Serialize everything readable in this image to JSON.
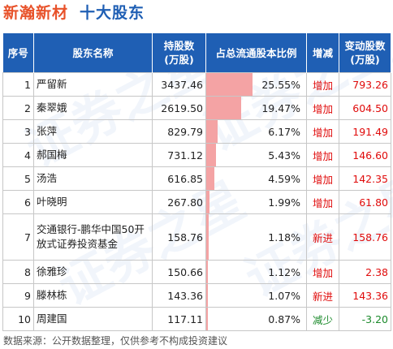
{
  "header": {
    "company": "新瀚新材",
    "subtitle": "十大股东"
  },
  "table": {
    "columns": [
      "序号",
      "股东名称",
      "持股数\n(万股)",
      "占总流通股本比例",
      "增减",
      "变动股数\n(万股)"
    ],
    "rows": [
      {
        "rank": "1",
        "name": "严留新",
        "shares": "3437.46",
        "ratio": "25.55%",
        "ratio_value": 25.55,
        "action": "增加",
        "change": "793.26"
      },
      {
        "rank": "2",
        "name": "秦翠娥",
        "shares": "2619.50",
        "ratio": "19.47%",
        "ratio_value": 19.47,
        "action": "增加",
        "change": "604.50"
      },
      {
        "rank": "3",
        "name": "张萍",
        "shares": "829.79",
        "ratio": "6.17%",
        "ratio_value": 6.17,
        "action": "增加",
        "change": "191.49"
      },
      {
        "rank": "4",
        "name": "郝国梅",
        "shares": "731.12",
        "ratio": "5.43%",
        "ratio_value": 5.43,
        "action": "增加",
        "change": "146.60"
      },
      {
        "rank": "5",
        "name": "汤浩",
        "shares": "616.85",
        "ratio": "4.59%",
        "ratio_value": 4.59,
        "action": "增加",
        "change": "142.35"
      },
      {
        "rank": "6",
        "name": "叶晓明",
        "shares": "267.80",
        "ratio": "1.99%",
        "ratio_value": 1.99,
        "action": "增加",
        "change": "61.80"
      },
      {
        "rank": "7",
        "name": "交通银行-鹏华中国50开放式证券投资基金",
        "shares": "158.76",
        "ratio": "1.18%",
        "ratio_value": 1.18,
        "action": "新进",
        "change": "158.76"
      },
      {
        "rank": "8",
        "name": "徐雅珍",
        "shares": "150.66",
        "ratio": "1.12%",
        "ratio_value": 1.12,
        "action": "增加",
        "change": "2.38"
      },
      {
        "rank": "9",
        "name": "滕林栋",
        "shares": "143.36",
        "ratio": "1.07%",
        "ratio_value": 1.07,
        "action": "新进",
        "change": "143.36"
      },
      {
        "rank": "10",
        "name": "周建国",
        "shares": "117.11",
        "ratio": "0.87%",
        "ratio_value": 0.87,
        "action": "减少",
        "change": "-3.20"
      }
    ]
  },
  "colors": {
    "header_bg": "#1f5fb4",
    "bar": "#f4a3a4",
    "increase": "#e00b0b",
    "decrease": "#1b8a2b",
    "company": "#e8522a"
  },
  "watermark": "证券之星",
  "footer": "数据来源：公开数据整理，仅供参考不构成投资建议"
}
